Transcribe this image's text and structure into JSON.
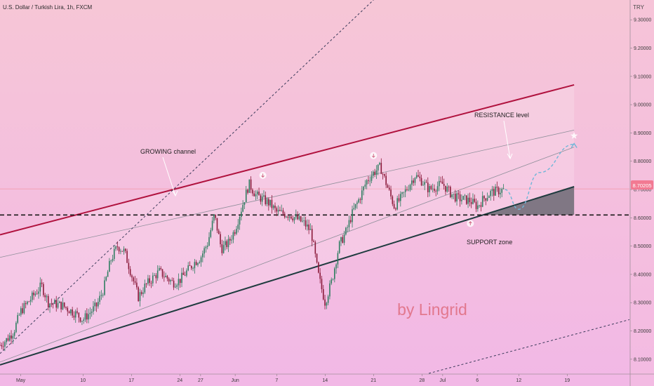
{
  "header": {
    "title": "U.S. Dollar / Turkish Lira, 1h, FXCM",
    "currency": "TRY"
  },
  "watermark": "by Lingrid",
  "annotations": {
    "channel_label": "GROWING channel",
    "resistance_label": "RESISTANCE level",
    "support_label": "SUPPORT zone"
  },
  "last_price": {
    "label": "8.70205",
    "value": 8.70205
  },
  "colors": {
    "bg_top": "#f6c6d6",
    "bg_bottom": "#f2b8e6",
    "candle_up": "#2e7d60",
    "candle_down": "#8b1a3a",
    "channel_top": "#b0123e",
    "channel_bottom": "#1f3b3f",
    "support_dashed": "#1a1a1a",
    "watermark": "#e2788e",
    "projection": "#6fb6d8",
    "price_tag": "#f27a92"
  },
  "chart_data": {
    "type": "candlestick",
    "title": "U.S. Dollar / Turkish Lira, 1h, FXCM",
    "y_unit": "TRY",
    "ylim": [
      8.05,
      9.37
    ],
    "y_ticks": [
      8.1,
      8.2,
      8.3,
      8.4,
      8.5,
      8.6,
      8.7,
      8.8,
      8.9,
      9.0,
      9.1,
      9.2,
      9.3
    ],
    "y_tick_labels": [
      "8.10000",
      "8.20000",
      "8.30000",
      "8.40000",
      "8.50000",
      "8.60000",
      "8.70000",
      "8.80000",
      "8.90000",
      "9.00000",
      "9.10000",
      "9.20000",
      "9.30000"
    ],
    "xlim": [
      "2021-04-28",
      "2021-07-28"
    ],
    "x_ticks": [
      {
        "date": "2021-05-01",
        "label": "May"
      },
      {
        "date": "2021-05-10",
        "label": "10"
      },
      {
        "date": "2021-05-17",
        "label": "17"
      },
      {
        "date": "2021-05-24",
        "label": "24"
      },
      {
        "date": "2021-05-27",
        "label": "27"
      },
      {
        "date": "2021-06-01",
        "label": "Jun"
      },
      {
        "date": "2021-06-07",
        "label": "7"
      },
      {
        "date": "2021-06-14",
        "label": "14"
      },
      {
        "date": "2021-06-21",
        "label": "21"
      },
      {
        "date": "2021-06-28",
        "label": "28"
      },
      {
        "date": "2021-07-01",
        "label": "Jul"
      },
      {
        "date": "2021-07-06",
        "label": "6"
      },
      {
        "date": "2021-07-12",
        "label": "12"
      },
      {
        "date": "2021-07-19",
        "label": "19"
      }
    ],
    "price_path": [
      [
        "2021-04-28",
        8.15
      ],
      [
        "2021-04-29",
        8.17
      ],
      [
        "2021-04-30",
        8.2
      ],
      [
        "2021-05-01",
        8.27
      ],
      [
        "2021-05-02",
        8.3
      ],
      [
        "2021-05-04",
        8.36
      ],
      [
        "2021-05-05",
        8.3
      ],
      [
        "2021-05-07",
        8.29
      ],
      [
        "2021-05-09",
        8.26
      ],
      [
        "2021-05-10",
        8.24
      ],
      [
        "2021-05-12",
        8.29
      ],
      [
        "2021-05-13",
        8.35
      ],
      [
        "2021-05-14",
        8.45
      ],
      [
        "2021-05-15",
        8.5
      ],
      [
        "2021-05-16",
        8.48
      ],
      [
        "2021-05-17",
        8.4
      ],
      [
        "2021-05-18",
        8.32
      ],
      [
        "2021-05-19",
        8.36
      ],
      [
        "2021-05-21",
        8.41
      ],
      [
        "2021-05-23",
        8.37
      ],
      [
        "2021-05-24",
        8.38
      ],
      [
        "2021-05-26",
        8.44
      ],
      [
        "2021-05-27",
        8.46
      ],
      [
        "2021-05-28",
        8.51
      ],
      [
        "2021-05-29",
        8.61
      ],
      [
        "2021-05-30",
        8.49
      ],
      [
        "2021-05-31",
        8.51
      ],
      [
        "2021-06-01",
        8.56
      ],
      [
        "2021-06-02",
        8.64
      ],
      [
        "2021-06-03",
        8.72
      ],
      [
        "2021-06-04",
        8.68
      ],
      [
        "2021-06-06",
        8.65
      ],
      [
        "2021-06-07",
        8.62
      ],
      [
        "2021-06-09",
        8.61
      ],
      [
        "2021-06-11",
        8.58
      ],
      [
        "2021-06-12",
        8.55
      ],
      [
        "2021-06-13",
        8.4
      ],
      [
        "2021-06-14",
        8.3
      ],
      [
        "2021-06-15",
        8.38
      ],
      [
        "2021-06-16",
        8.5
      ],
      [
        "2021-06-17",
        8.55
      ],
      [
        "2021-06-18",
        8.62
      ],
      [
        "2021-06-19",
        8.67
      ],
      [
        "2021-06-20",
        8.73
      ],
      [
        "2021-06-21",
        8.76
      ],
      [
        "2021-06-22",
        8.78
      ],
      [
        "2021-06-23",
        8.71
      ],
      [
        "2021-06-24",
        8.64
      ],
      [
        "2021-06-25",
        8.67
      ],
      [
        "2021-06-26",
        8.71
      ],
      [
        "2021-06-27",
        8.75
      ],
      [
        "2021-06-28",
        8.73
      ],
      [
        "2021-06-29",
        8.7
      ],
      [
        "2021-07-01",
        8.72
      ],
      [
        "2021-07-02",
        8.69
      ],
      [
        "2021-07-03",
        8.67
      ],
      [
        "2021-07-05",
        8.66
      ],
      [
        "2021-07-06",
        8.64
      ],
      [
        "2021-07-07",
        8.67
      ],
      [
        "2021-07-08",
        8.69
      ],
      [
        "2021-07-10",
        8.7
      ]
    ],
    "channel": {
      "top": [
        [
          "2021-04-28",
          8.54
        ],
        [
          "2021-07-20",
          9.07
        ]
      ],
      "bottom": [
        [
          "2021-04-28",
          8.08
        ],
        [
          "2021-07-20",
          8.71
        ]
      ],
      "mid_upper": [
        [
          "2021-04-28",
          8.46
        ],
        [
          "2021-07-20",
          8.91
        ]
      ],
      "mid_lower": [
        [
          "2021-04-28",
          8.09
        ],
        [
          "2021-07-20",
          8.85
        ]
      ]
    },
    "outer_channel_top": [
      [
        "2021-04-28",
        8.12
      ],
      [
        "2021-06-21",
        9.37
      ]
    ],
    "outer_channel_bottom": [
      [
        "2021-06-29",
        8.05
      ],
      [
        "2021-07-28",
        8.24
      ]
    ],
    "support_level": 8.61,
    "projection_path": [
      [
        "2021-07-10",
        8.7
      ],
      [
        "2021-07-12",
        8.63
      ],
      [
        "2021-07-15",
        8.76
      ],
      [
        "2021-07-20",
        8.86
      ]
    ],
    "target_star": [
      "2021-07-20",
      8.89
    ],
    "markers": [
      {
        "date": "2021-06-05",
        "value": 8.75,
        "dir": "down"
      },
      {
        "date": "2021-06-21",
        "value": 8.82,
        "dir": "down"
      },
      {
        "date": "2021-07-05",
        "value": 8.58,
        "dir": "up"
      }
    ]
  }
}
